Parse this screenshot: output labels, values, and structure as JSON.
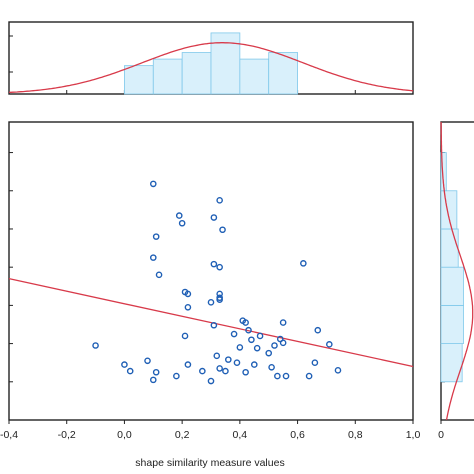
{
  "colors": {
    "point": "#1f5fb5",
    "fit_line": "#d83a4a",
    "hist_fill": "#d9f0fb",
    "hist_edge": "#7fc8ea",
    "axis": "#222222"
  },
  "chart_data": [
    {
      "type": "scatter",
      "xlabel": "shape similarity measure values",
      "xlim": [
        -0.4,
        1.0
      ],
      "ylim": [
        0.1,
        0.88
      ],
      "x_ticks": [
        "-0,4",
        "-0,2",
        "0,0",
        "0,2",
        "0,4",
        "0,6",
        "0,8",
        "1,0"
      ],
      "x_tick_values": [
        -0.4,
        -0.2,
        0.0,
        0.2,
        0.4,
        0.6,
        0.8,
        1.0
      ],
      "y_tick_values": [
        0.2,
        0.3,
        0.4,
        0.5,
        0.6,
        0.7,
        0.8
      ],
      "fit_line": {
        "x": [
          -0.4,
          1.0
        ],
        "y": [
          0.47,
          0.24
        ]
      },
      "points": [
        [
          -0.1,
          0.295
        ],
        [
          0.0,
          0.245
        ],
        [
          0.02,
          0.228
        ],
        [
          0.08,
          0.255
        ],
        [
          0.1,
          0.205
        ],
        [
          0.1,
          0.718
        ],
        [
          0.1,
          0.525
        ],
        [
          0.11,
          0.225
        ],
        [
          0.11,
          0.58
        ],
        [
          0.12,
          0.48
        ],
        [
          0.18,
          0.215
        ],
        [
          0.19,
          0.635
        ],
        [
          0.2,
          0.615
        ],
        [
          0.21,
          0.435
        ],
        [
          0.21,
          0.32
        ],
        [
          0.22,
          0.395
        ],
        [
          0.22,
          0.43
        ],
        [
          0.22,
          0.245
        ],
        [
          0.27,
          0.228
        ],
        [
          0.3,
          0.202
        ],
        [
          0.3,
          0.408
        ],
        [
          0.31,
          0.508
        ],
        [
          0.31,
          0.348
        ],
        [
          0.31,
          0.63
        ],
        [
          0.32,
          0.268
        ],
        [
          0.33,
          0.5
        ],
        [
          0.33,
          0.43
        ],
        [
          0.33,
          0.42
        ],
        [
          0.33,
          0.415
        ],
        [
          0.33,
          0.235
        ],
        [
          0.33,
          0.675
        ],
        [
          0.34,
          0.598
        ],
        [
          0.35,
          0.228
        ],
        [
          0.36,
          0.258
        ],
        [
          0.38,
          0.325
        ],
        [
          0.39,
          0.25
        ],
        [
          0.4,
          0.29
        ],
        [
          0.41,
          0.36
        ],
        [
          0.42,
          0.225
        ],
        [
          0.42,
          0.355
        ],
        [
          0.43,
          0.335
        ],
        [
          0.44,
          0.31
        ],
        [
          0.45,
          0.245
        ],
        [
          0.46,
          0.288
        ],
        [
          0.47,
          0.32
        ],
        [
          0.5,
          0.275
        ],
        [
          0.51,
          0.238
        ],
        [
          0.52,
          0.295
        ],
        [
          0.53,
          0.215
        ],
        [
          0.54,
          0.312
        ],
        [
          0.55,
          0.355
        ],
        [
          0.55,
          0.302
        ],
        [
          0.56,
          0.215
        ],
        [
          0.62,
          0.51
        ],
        [
          0.64,
          0.215
        ],
        [
          0.66,
          0.25
        ],
        [
          0.67,
          0.335
        ],
        [
          0.71,
          0.298
        ],
        [
          0.74,
          0.23
        ]
      ]
    },
    {
      "type": "bar",
      "bin_edges": [
        0.0,
        0.1,
        0.2,
        0.3,
        0.4,
        0.5,
        0.6
      ],
      "values": [
        13,
        16,
        19,
        28,
        16,
        19
      ],
      "ylim": [
        0,
        33
      ],
      "normal_curve": {
        "mean": 0.34,
        "sd": 0.28,
        "peak": 23.5
      }
    },
    {
      "type": "bar",
      "orientation": "horizontal",
      "bin_edges": [
        0.2,
        0.3,
        0.4,
        0.5,
        0.6,
        0.7,
        0.8
      ],
      "values": [
        16,
        17,
        17,
        13,
        12,
        4
      ],
      "xlim": [
        0,
        31
      ],
      "x_ticks": [
        "0"
      ],
      "normal_curve": {
        "mean": 0.38,
        "sd": 0.15,
        "peak": 24
      }
    }
  ]
}
